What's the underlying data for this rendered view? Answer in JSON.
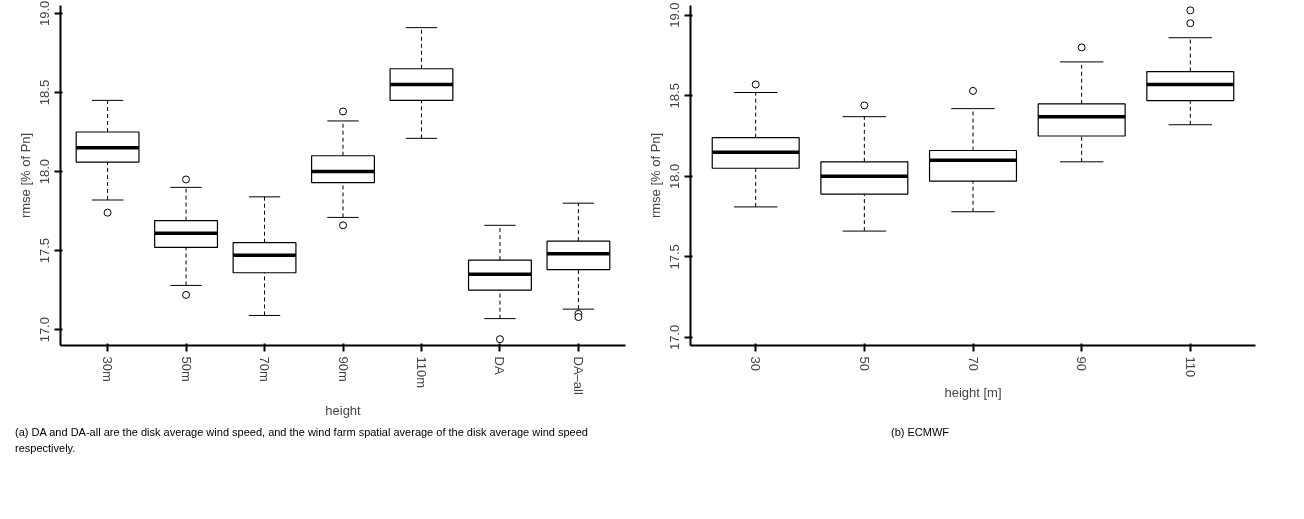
{
  "chart_data": [
    {
      "type": "box",
      "xlabel": "height",
      "ylabel": "rmse [% of Pn]",
      "categories": [
        "30m",
        "50m",
        "70m",
        "90m",
        "110m",
        "DA",
        "DA–all"
      ],
      "ylim": [
        16.9,
        19.05
      ],
      "yticks": [
        {
          "value": 17,
          "label": "17.0"
        },
        {
          "value": 17.5,
          "label": "17.5"
        },
        {
          "value": 18,
          "label": "18.0"
        },
        {
          "value": 18.5,
          "label": "18.5"
        },
        {
          "value": 19,
          "label": "19.0"
        }
      ],
      "boxes": [
        {
          "low": 17.82,
          "q1": 18.06,
          "median": 18.15,
          "q3": 18.25,
          "high": 18.45,
          "outliers": [
            17.74
          ]
        },
        {
          "low": 17.28,
          "q1": 17.52,
          "median": 17.61,
          "q3": 17.69,
          "high": 17.9,
          "outliers": [
            17.95,
            17.22
          ]
        },
        {
          "low": 17.09,
          "q1": 17.36,
          "median": 17.47,
          "q3": 17.55,
          "high": 17.84
        },
        {
          "low": 17.71,
          "q1": 17.93,
          "median": 18.0,
          "q3": 18.1,
          "high": 18.32,
          "outliers": [
            18.38,
            17.66
          ]
        },
        {
          "low": 18.21,
          "q1": 18.45,
          "median": 18.55,
          "q3": 18.65,
          "high": 18.91
        },
        {
          "low": 17.07,
          "q1": 17.25,
          "median": 17.35,
          "q3": 17.44,
          "high": 17.66,
          "outliers": [
            16.94
          ]
        },
        {
          "low": 17.13,
          "q1": 17.38,
          "median": 17.48,
          "q3": 17.56,
          "high": 17.8,
          "outliers": [
            17.1,
            17.08
          ]
        }
      ],
      "grid": false,
      "marker": "circle",
      "annotations": [
        "(a) DA and DA-all are the disk average wind speed, and the wind farm spatial average of the disk average wind speed respectively."
      ]
    },
    {
      "type": "box",
      "xlabel": "height [m]",
      "ylabel": "rmse [% of Pn]",
      "categories": [
        "30",
        "50",
        "70",
        "90",
        "110"
      ],
      "ylim": [
        16.95,
        19.06
      ],
      "yticks": [
        {
          "value": 17,
          "label": "17.0"
        },
        {
          "value": 17.5,
          "label": "17.5"
        },
        {
          "value": 18,
          "label": "18.0"
        },
        {
          "value": 18.5,
          "label": "18.5"
        },
        {
          "value": 19,
          "label": "19.0"
        }
      ],
      "boxes": [
        {
          "low": 17.81,
          "q1": 18.05,
          "median": 18.15,
          "q3": 18.24,
          "high": 18.52,
          "outliers": [
            18.57
          ]
        },
        {
          "low": 17.66,
          "q1": 17.89,
          "median": 18.0,
          "q3": 18.09,
          "high": 18.37,
          "outliers": [
            18.44
          ]
        },
        {
          "low": 17.78,
          "q1": 17.97,
          "median": 18.1,
          "q3": 18.16,
          "high": 18.42,
          "outliers": [
            18.53
          ]
        },
        {
          "low": 18.09,
          "q1": 18.25,
          "median": 18.37,
          "q3": 18.45,
          "high": 18.71,
          "outliers": [
            18.8
          ]
        },
        {
          "low": 18.32,
          "q1": 18.47,
          "median": 18.57,
          "q3": 18.65,
          "high": 18.86,
          "outliers": [
            19.03,
            18.95
          ]
        }
      ],
      "grid": false,
      "marker": "circle",
      "annotations": [
        "(b) ECMWF"
      ]
    }
  ]
}
